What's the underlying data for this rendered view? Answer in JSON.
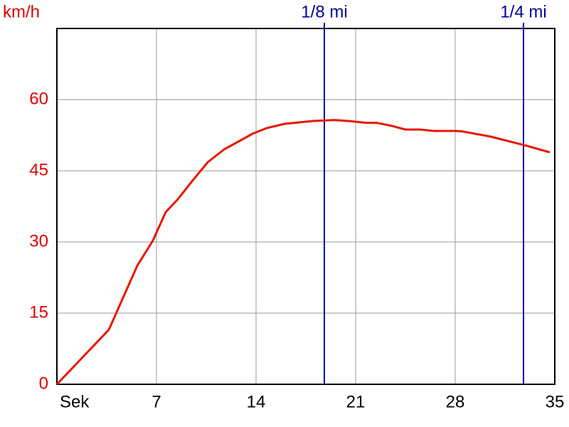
{
  "chart_data": {
    "type": "line",
    "y_label": "km/h",
    "x": [
      0,
      3.65,
      5.65,
      6.75,
      7.65,
      8.5,
      9.5,
      10.6,
      11.75,
      13.75,
      14.75,
      16,
      18,
      19.5,
      20.5,
      21.75,
      22.5,
      23.5,
      24.5,
      25.5,
      26.5,
      28,
      28.5,
      30.5,
      33,
      34.65
    ],
    "series": [
      {
        "color": "#e81800",
        "values": [
          0,
          11.5,
          25,
          30.3,
          36.3,
          39,
          42.8,
          46.8,
          49.5,
          52.8,
          54,
          54.9,
          55.5,
          55.7,
          55.5,
          55.1,
          55.1,
          54.5,
          53.7,
          53.7,
          53.4,
          53.4,
          53.3,
          52.2,
          50.3,
          48.9
        ]
      }
    ],
    "xlim": [
      0,
      35
    ],
    "xticks": [
      {
        "value": 0,
        "label": "Sek"
      },
      7,
      14,
      21,
      28,
      35
    ],
    "ylim": [
      0,
      75
    ],
    "yticks": [
      0,
      15,
      30,
      45,
      60
    ],
    "grid": true,
    "y_tick_color": "#e00000",
    "markers": [
      {
        "label": "1/8 mi",
        "x": 18.8,
        "color": "#0000a0"
      },
      {
        "label": "1/4 mi",
        "x": 32.8,
        "color": "#0000a0"
      }
    ]
  }
}
